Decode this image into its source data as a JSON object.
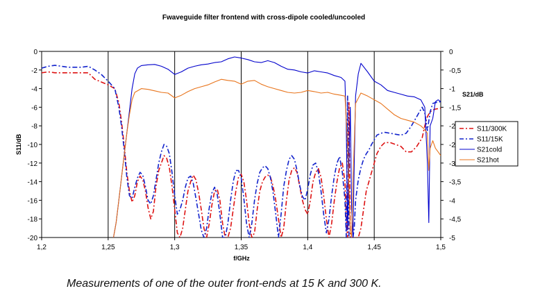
{
  "chart_data": {
    "type": "line",
    "title": "Fwaveguide filter frontend with cross-dipole cooled/uncooled",
    "xlabel": "f/GHz",
    "ylabel": "S11/dB",
    "y2label": "S21/dB",
    "xlim": [
      1.2,
      1.5
    ],
    "ylim": [
      -20,
      0
    ],
    "y2lim": [
      -5,
      0
    ],
    "xticks": [
      "1,2",
      "1,25",
      "1,3",
      "1,35",
      "1,4",
      "1,45",
      "1,5"
    ],
    "yticks": [
      "0",
      "-2",
      "-4",
      "-6",
      "-8",
      "-10",
      "-12",
      "-14",
      "-16",
      "-18",
      "-20"
    ],
    "y2ticks": [
      "0",
      "-0,5",
      "-1",
      "-1,5",
      "-2",
      "-2,5",
      "-3",
      "-3,5",
      "-4",
      "-4,5",
      "-5"
    ],
    "grid": {
      "vertical": true,
      "horizontal": false
    },
    "legend_position": "right",
    "series": [
      {
        "name": "S11/300K",
        "axis": "left",
        "color": "#dd1111",
        "style": "dashdot",
        "x": [
          1.2,
          1.205,
          1.21,
          1.22,
          1.235,
          1.24,
          1.245,
          1.25,
          1.255,
          1.258,
          1.26,
          1.262,
          1.264,
          1.266,
          1.268,
          1.27,
          1.272,
          1.274,
          1.276,
          1.278,
          1.28,
          1.282,
          1.284,
          1.286,
          1.288,
          1.29,
          1.292,
          1.294,
          1.296,
          1.298,
          1.3,
          1.302,
          1.304,
          1.306,
          1.308,
          1.31,
          1.312,
          1.314,
          1.316,
          1.318,
          1.32,
          1.322,
          1.324,
          1.326,
          1.328,
          1.33,
          1.332,
          1.334,
          1.336,
          1.338,
          1.34,
          1.342,
          1.344,
          1.346,
          1.348,
          1.35,
          1.352,
          1.354,
          1.356,
          1.358,
          1.36,
          1.362,
          1.364,
          1.366,
          1.368,
          1.37,
          1.372,
          1.374,
          1.376,
          1.378,
          1.38,
          1.382,
          1.384,
          1.386,
          1.388,
          1.39,
          1.392,
          1.394,
          1.396,
          1.398,
          1.4,
          1.402,
          1.404,
          1.406,
          1.408,
          1.41,
          1.412,
          1.414,
          1.416,
          1.418,
          1.42,
          1.422,
          1.424,
          1.426,
          1.428,
          1.429,
          1.43,
          1.431,
          1.432,
          1.433,
          1.434,
          1.435,
          1.436,
          1.438,
          1.44,
          1.442,
          1.444,
          1.446,
          1.448,
          1.45,
          1.452,
          1.455,
          1.458,
          1.462,
          1.466,
          1.47,
          1.474,
          1.478,
          1.482,
          1.486,
          1.488,
          1.49,
          1.492,
          1.494,
          1.496,
          1.5
        ],
        "y": [
          -2.3,
          -2.2,
          -2.3,
          -2.3,
          -2.3,
          -3.0,
          -3.3,
          -3.6,
          -4.0,
          -5.5,
          -7.5,
          -10.0,
          -13.0,
          -15.0,
          -16.2,
          -15.5,
          -14.0,
          -13.4,
          -13.8,
          -15.0,
          -16.8,
          -18.0,
          -17.2,
          -14.5,
          -12.8,
          -12.0,
          -11.2,
          -11.5,
          -12.5,
          -14.5,
          -17.0,
          -19.5,
          -20.0,
          -19.0,
          -17.0,
          -15.0,
          -14.0,
          -13.3,
          -13.8,
          -15.2,
          -17.0,
          -19.0,
          -20.0,
          -18.5,
          -16.5,
          -15.0,
          -14.8,
          -16.0,
          -18.5,
          -20.0,
          -20.0,
          -19.0,
          -17.0,
          -15.0,
          -13.5,
          -13.2,
          -14.0,
          -16.0,
          -18.5,
          -20.0,
          -19.5,
          -17.0,
          -15.0,
          -14.0,
          -13.5,
          -13.3,
          -13.5,
          -14.5,
          -16.0,
          -18.0,
          -20.0,
          -19.0,
          -16.0,
          -13.8,
          -12.8,
          -12.5,
          -13.0,
          -14.5,
          -16.0,
          -17.0,
          -17.5,
          -16.0,
          -14.0,
          -13.0,
          -12.6,
          -13.5,
          -15.5,
          -18.0,
          -20.0,
          -18.5,
          -16.0,
          -14.0,
          -12.5,
          -12.0,
          -14.0,
          -18.0,
          -20.0,
          -5.5,
          -20.0,
          -20.0,
          -20.0,
          -20.0,
          -20.0,
          -20.0,
          -19.0,
          -17.0,
          -15.0,
          -14.0,
          -13.0,
          -12.0,
          -11.0,
          -10.2,
          -9.8,
          -9.8,
          -10.0,
          -10.2,
          -10.8,
          -10.8,
          -10.2,
          -9.3,
          -8.0,
          -7.0,
          -6.5,
          -6.3,
          -6.2,
          -6.1
        ]
      },
      {
        "name": "S11/15K",
        "axis": "left",
        "color": "#1122cc",
        "style": "dashdot",
        "x": [
          1.2,
          1.205,
          1.21,
          1.22,
          1.23,
          1.235,
          1.24,
          1.245,
          1.25,
          1.255,
          1.258,
          1.26,
          1.262,
          1.264,
          1.266,
          1.268,
          1.27,
          1.272,
          1.274,
          1.276,
          1.278,
          1.28,
          1.282,
          1.284,
          1.286,
          1.288,
          1.29,
          1.292,
          1.294,
          1.296,
          1.298,
          1.3,
          1.302,
          1.304,
          1.306,
          1.308,
          1.31,
          1.312,
          1.314,
          1.316,
          1.318,
          1.32,
          1.322,
          1.324,
          1.326,
          1.328,
          1.33,
          1.332,
          1.334,
          1.336,
          1.338,
          1.34,
          1.342,
          1.344,
          1.346,
          1.348,
          1.35,
          1.352,
          1.354,
          1.356,
          1.358,
          1.36,
          1.362,
          1.364,
          1.366,
          1.368,
          1.37,
          1.372,
          1.374,
          1.376,
          1.378,
          1.38,
          1.382,
          1.384,
          1.386,
          1.388,
          1.39,
          1.392,
          1.394,
          1.396,
          1.398,
          1.4,
          1.402,
          1.404,
          1.406,
          1.408,
          1.41,
          1.412,
          1.414,
          1.416,
          1.418,
          1.42,
          1.422,
          1.424,
          1.426,
          1.428,
          1.429,
          1.43,
          1.431,
          1.432,
          1.433,
          1.434,
          1.435,
          1.436,
          1.438,
          1.44,
          1.442,
          1.444,
          1.446,
          1.448,
          1.45,
          1.452,
          1.455,
          1.458,
          1.462,
          1.466,
          1.47,
          1.474,
          1.478,
          1.482,
          1.486,
          1.488,
          1.49,
          1.492,
          1.494,
          1.496,
          1.5
        ],
        "y": [
          -1.8,
          -1.6,
          -1.5,
          -1.7,
          -1.7,
          -1.6,
          -2.0,
          -2.5,
          -3.2,
          -4.0,
          -6.0,
          -8.0,
          -10.5,
          -13.5,
          -15.5,
          -15.8,
          -14.6,
          -13.6,
          -13.0,
          -13.3,
          -14.5,
          -16.0,
          -16.4,
          -15.5,
          -13.8,
          -12.0,
          -10.8,
          -10.0,
          -10.2,
          -11.0,
          -13.0,
          -15.5,
          -17.5,
          -17.0,
          -16.0,
          -14.6,
          -13.6,
          -13.4,
          -14.2,
          -15.8,
          -17.5,
          -19.2,
          -20.0,
          -19.0,
          -16.8,
          -15.2,
          -14.6,
          -15.4,
          -17.5,
          -20.0,
          -20.0,
          -18.5,
          -16.0,
          -14.0,
          -12.8,
          -12.8,
          -13.6,
          -15.8,
          -18.5,
          -20.0,
          -18.5,
          -16.0,
          -14.2,
          -13.0,
          -12.5,
          -12.3,
          -12.6,
          -13.6,
          -15.2,
          -17.5,
          -20.0,
          -17.5,
          -14.5,
          -12.8,
          -11.6,
          -11.2,
          -11.6,
          -12.8,
          -14.4,
          -15.6,
          -16.0,
          -14.8,
          -13.2,
          -12.2,
          -12.0,
          -13.0,
          -15.0,
          -17.5,
          -19.5,
          -18.0,
          -15.5,
          -13.4,
          -12.0,
          -11.3,
          -13.0,
          -16.0,
          -20.0,
          -4.8,
          -20.0,
          -20.0,
          -20.0,
          -20.0,
          -19.0,
          -16.0,
          -13.8,
          -12.5,
          -11.6,
          -11.0,
          -10.6,
          -10.0,
          -9.5,
          -9.0,
          -8.8,
          -8.7,
          -8.8,
          -8.9,
          -9.0,
          -8.8,
          -8.0,
          -7.0,
          -6.0,
          -6.6,
          -8.5,
          -6.5,
          -5.6,
          -5.5,
          -5.4
        ]
      },
      {
        "name": "S21cold",
        "axis": "right",
        "color": "#0000cc",
        "style": "solid",
        "x": [
          1.254,
          1.256,
          1.258,
          1.26,
          1.262,
          1.264,
          1.266,
          1.268,
          1.27,
          1.272,
          1.275,
          1.28,
          1.285,
          1.29,
          1.295,
          1.3,
          1.305,
          1.31,
          1.315,
          1.32,
          1.325,
          1.33,
          1.335,
          1.34,
          1.345,
          1.35,
          1.355,
          1.36,
          1.365,
          1.37,
          1.375,
          1.38,
          1.385,
          1.39,
          1.395,
          1.4,
          1.405,
          1.41,
          1.415,
          1.42,
          1.425,
          1.428,
          1.429,
          1.43,
          1.431,
          1.432,
          1.433,
          1.434,
          1.435,
          1.436,
          1.438,
          1.44,
          1.445,
          1.45,
          1.455,
          1.46,
          1.465,
          1.47,
          1.475,
          1.48,
          1.485,
          1.488,
          1.49,
          1.491,
          1.492,
          1.494,
          1.496,
          1.498,
          1.5
        ],
        "y": [
          -5.0,
          -4.6,
          -4.0,
          -3.4,
          -2.8,
          -2.2,
          -1.6,
          -1.0,
          -0.6,
          -0.45,
          -0.38,
          -0.36,
          -0.35,
          -0.4,
          -0.48,
          -0.62,
          -0.55,
          -0.45,
          -0.4,
          -0.36,
          -0.34,
          -0.3,
          -0.28,
          -0.2,
          -0.15,
          -0.18,
          -0.22,
          -0.28,
          -0.3,
          -0.25,
          -0.3,
          -0.4,
          -0.48,
          -0.5,
          -0.55,
          -0.58,
          -0.52,
          -0.55,
          -0.58,
          -0.65,
          -0.7,
          -0.8,
          -2.0,
          -4.8,
          -3.0,
          -1.5,
          -4.2,
          -5.0,
          -3.0,
          -1.2,
          -0.6,
          -0.32,
          -0.55,
          -0.8,
          -0.9,
          -1.05,
          -1.1,
          -1.15,
          -1.2,
          -1.22,
          -1.3,
          -1.5,
          -3.0,
          -4.6,
          -2.0,
          -1.8,
          -1.35,
          -1.3,
          -1.35
        ]
      },
      {
        "name": "S21hot",
        "axis": "right",
        "color": "#e8731a",
        "style": "solid",
        "x": [
          1.254,
          1.256,
          1.258,
          1.26,
          1.262,
          1.264,
          1.266,
          1.268,
          1.27,
          1.275,
          1.28,
          1.285,
          1.29,
          1.295,
          1.3,
          1.305,
          1.31,
          1.315,
          1.32,
          1.325,
          1.33,
          1.335,
          1.34,
          1.345,
          1.35,
          1.355,
          1.36,
          1.365,
          1.37,
          1.375,
          1.38,
          1.385,
          1.39,
          1.395,
          1.4,
          1.405,
          1.41,
          1.415,
          1.42,
          1.425,
          1.428,
          1.43,
          1.432,
          1.433,
          1.434,
          1.436,
          1.44,
          1.445,
          1.45,
          1.455,
          1.46,
          1.465,
          1.47,
          1.475,
          1.48,
          1.485,
          1.488,
          1.49,
          1.491,
          1.492,
          1.494,
          1.496,
          1.498,
          1.5
        ],
        "y": [
          -5.0,
          -4.6,
          -4.0,
          -3.4,
          -2.8,
          -2.2,
          -1.7,
          -1.3,
          -1.1,
          -1.0,
          -1.02,
          -1.06,
          -1.1,
          -1.12,
          -1.25,
          -1.18,
          -1.08,
          -1.0,
          -0.95,
          -0.9,
          -0.82,
          -0.75,
          -0.78,
          -0.8,
          -0.88,
          -0.8,
          -0.78,
          -0.88,
          -0.95,
          -1.0,
          -1.05,
          -1.1,
          -1.12,
          -1.1,
          -1.05,
          -1.08,
          -1.12,
          -1.1,
          -1.15,
          -1.18,
          -1.2,
          -2.5,
          -4.8,
          -5.0,
          -3.5,
          -1.4,
          -1.12,
          -1.2,
          -1.3,
          -1.4,
          -1.55,
          -1.7,
          -1.8,
          -1.85,
          -1.9,
          -2.0,
          -2.1,
          -2.2,
          -3.2,
          -2.6,
          -2.4,
          -2.6,
          -2.7,
          -2.8
        ]
      }
    ]
  },
  "caption": "Measurements of one of the outer front-ends at 15 K and 300 K."
}
